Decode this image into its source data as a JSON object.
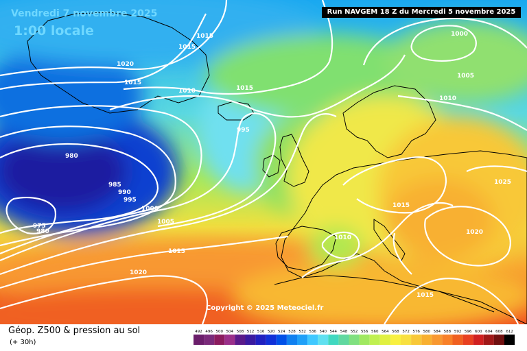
{
  "header": {
    "date": "Vendredi 7 novembre 2025",
    "time": "1:00 locale",
    "run": "Run NAVGEM 18 Z du Mercredi 5 novembre 2025"
  },
  "copyright": "Copyright © 2025 Meteociel.fr",
  "footer": {
    "title": "Géop. Z500 & pression au sol",
    "subtitle": "(+ 30h)"
  },
  "legend": {
    "values": [
      "492",
      "496",
      "500",
      "504",
      "508",
      "512",
      "516",
      "520",
      "524",
      "528",
      "532",
      "536",
      "540",
      "544",
      "548",
      "552",
      "556",
      "560",
      "564",
      "568",
      "572",
      "576",
      "580",
      "584",
      "588",
      "592",
      "596",
      "600",
      "604",
      "608",
      "612"
    ],
    "colors": [
      "#6b1e6b",
      "#7a2a7a",
      "#8b1b5e",
      "#9a2f8a",
      "#5a1a8a",
      "#3a1aa0",
      "#2020c0",
      "#1030d8",
      "#0050e8",
      "#1080f0",
      "#20a0f8",
      "#40c8ff",
      "#60e0f0",
      "#40d8c0",
      "#60d8a0",
      "#80e080",
      "#a0e860",
      "#c0f050",
      "#e0f040",
      "#f8f040",
      "#f8e040",
      "#f8c838",
      "#f8b030",
      "#f89830",
      "#f88028",
      "#f06020",
      "#e84020",
      "#d02020",
      "#a01818",
      "#701010",
      "#000000"
    ]
  },
  "isobars": [
    {
      "label": "1000"
    },
    {
      "label": "1005"
    },
    {
      "label": "1010"
    },
    {
      "label": "1015"
    },
    {
      "label": "1015"
    },
    {
      "label": "1015"
    },
    {
      "label": "1015"
    },
    {
      "label": "1020"
    },
    {
      "label": "1015"
    },
    {
      "label": "1010"
    },
    {
      "label": "995"
    },
    {
      "label": "980"
    },
    {
      "label": "985"
    },
    {
      "label": "990"
    },
    {
      "label": "995"
    },
    {
      "label": "1000"
    },
    {
      "label": "1005"
    },
    {
      "label": "975"
    },
    {
      "label": "980"
    },
    {
      "label": "1015"
    },
    {
      "label": "1020"
    },
    {
      "label": "1010"
    },
    {
      "label": "1015"
    },
    {
      "label": "1025"
    },
    {
      "label": "1020"
    },
    {
      "label": "1015"
    }
  ]
}
